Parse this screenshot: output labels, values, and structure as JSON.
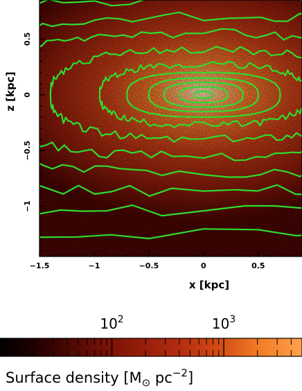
{
  "chart_data": {
    "type": "heatmap",
    "xlabel": "x [kpc]",
    "ylabel": "z [kpc]",
    "xlim": [
      -1.5,
      0.9
    ],
    "ylim": [
      -1.45,
      0.85
    ],
    "x_ticks": [
      -1.5,
      -1,
      -0.5,
      0,
      0.5
    ],
    "x_tick_labels": [
      "−1.5",
      "−1",
      "−0.5",
      "0",
      "0.5"
    ],
    "y_ticks": [
      -1,
      -0.5,
      0,
      0.5
    ],
    "y_tick_labels": [
      "−1",
      "−0.5",
      "0",
      "0.5"
    ],
    "colormap": [
      "#000000",
      "#3a0200",
      "#7a1408",
      "#b02e10",
      "#d85018",
      "#f07e2c",
      "#ffae62",
      "#ffe0c0"
    ],
    "contour_color": "#2fdc2f",
    "contours": [
      {
        "a": 0.08,
        "b": 0.03
      },
      {
        "a": 0.22,
        "b": 0.07
      },
      {
        "a": 0.36,
        "b": 0.11
      },
      {
        "a": 0.5,
        "b": 0.15
      },
      {
        "a": 0.7,
        "b": 0.2
      },
      {
        "a": 0.95,
        "b": 0.27
      },
      {
        "a": 1.4,
        "b": 0.4
      },
      {
        "a": 2.0,
        "b": 0.55
      },
      {
        "a": 2.7,
        "b": 0.7
      },
      {
        "a": 3.5,
        "b": 0.86
      },
      {
        "a": 4.6,
        "b": 1.05
      },
      {
        "a": 6.0,
        "b": 1.25
      }
    ],
    "colorbar": {
      "scale": "log",
      "range": [
        10,
        5000
      ],
      "ticks": [
        100,
        1000
      ],
      "tick_base": "10",
      "tick_exponents": [
        "2",
        "3"
      ],
      "title_main": "Surface density [M",
      "title_sun": "⊙",
      "title_unit": " pc",
      "title_exp": "−2",
      "title_end": "]"
    }
  }
}
